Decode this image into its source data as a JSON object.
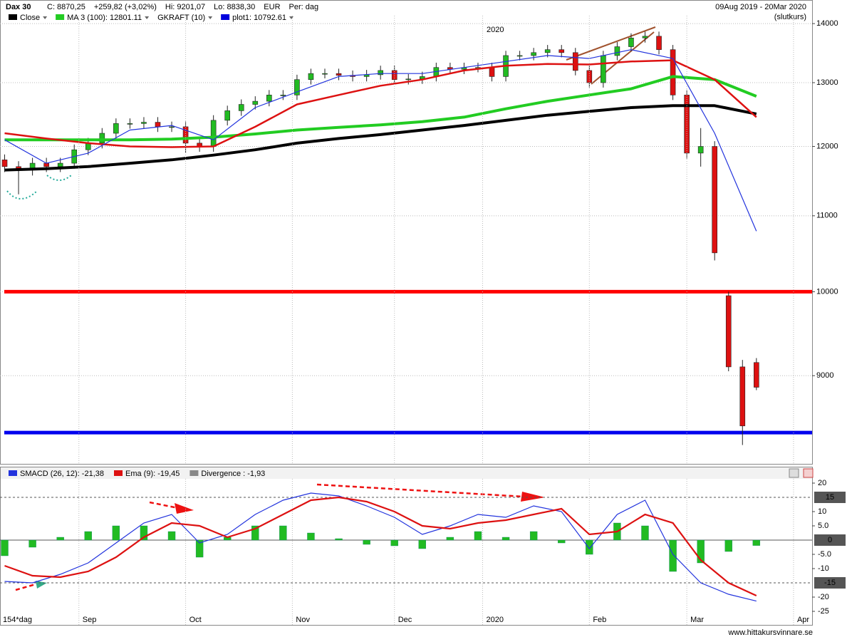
{
  "chart_data": [
    {
      "type": "candlestick",
      "title": "Dax 30",
      "stats": [
        "C: 8870,25",
        "+259,82 (+3,02%)",
        "Hi: 9201,07",
        "Lo: 8838,30",
        "EUR",
        "Per: dag"
      ],
      "date_range": "09Aug 2019 - 20Mar 2020",
      "price_basis": "(slutkurs)",
      "legend": [
        {
          "name": "Close",
          "color": "#000000"
        },
        {
          "name": "MA 3 (100): 12801.11",
          "color": "#22cc22"
        },
        {
          "name": "GKRAFT (10)",
          "color": null
        },
        {
          "name": "plot1: 10792.61",
          "color": "#0000dd"
        }
      ],
      "year_label": "2020",
      "log": true,
      "xlim": [
        -1,
        174
      ],
      "ylim": [
        8050,
        14140
      ],
      "yticks": [
        9000,
        10000,
        11000,
        12000,
        13000,
        14000
      ],
      "candles": {
        "x": [
          0,
          3,
          6,
          9,
          12,
          15,
          18,
          21,
          24,
          27,
          30,
          33,
          36,
          39,
          42,
          45,
          48,
          51,
          54,
          57,
          60,
          63,
          66,
          69,
          72,
          75,
          78,
          81,
          84,
          87,
          90,
          93,
          96,
          99,
          102,
          105,
          108,
          111,
          114,
          117,
          120,
          123,
          126,
          129,
          132,
          135,
          138,
          141,
          144,
          147,
          150,
          153,
          156,
          159,
          162
        ],
        "open": [
          11800,
          11700,
          11650,
          11750,
          11700,
          11750,
          11950,
          12050,
          12200,
          12350,
          12350,
          12370,
          12300,
          12300,
          12050,
          12000,
          12400,
          12550,
          12650,
          12700,
          12800,
          12800,
          13050,
          13150,
          13150,
          13120,
          13100,
          13130,
          13200,
          13050,
          13060,
          13100,
          13250,
          13220,
          13250,
          13250,
          13100,
          13450,
          13450,
          13500,
          13550,
          13500,
          13200,
          13000,
          13450,
          13600,
          13750,
          13780,
          13550,
          12800,
          11900,
          12000,
          9950,
          9100,
          9150
        ],
        "high": [
          11880,
          11780,
          11830,
          11830,
          11830,
          12030,
          12130,
          12280,
          12430,
          12430,
          12450,
          12450,
          12380,
          12380,
          12130,
          12480,
          12630,
          12730,
          12780,
          12880,
          12880,
          13130,
          13230,
          13230,
          13230,
          13200,
          13210,
          13280,
          13280,
          13140,
          13180,
          13330,
          13330,
          13330,
          13330,
          13330,
          13530,
          13530,
          13580,
          13630,
          13630,
          13580,
          13280,
          13530,
          13680,
          13830,
          13860,
          13860,
          13630,
          12880,
          12280,
          12080,
          10000,
          9180,
          9201
        ],
        "low": [
          11620,
          11300,
          11570,
          11620,
          11620,
          11670,
          11870,
          11970,
          12120,
          12270,
          12270,
          12220,
          12220,
          11900,
          11920,
          11920,
          12320,
          12470,
          12570,
          12620,
          12720,
          12720,
          12970,
          13070,
          13040,
          13020,
          13020,
          13050,
          12970,
          12970,
          12980,
          13020,
          13140,
          13140,
          13170,
          13020,
          13020,
          13370,
          13370,
          13420,
          13420,
          13120,
          12920,
          12920,
          13370,
          13520,
          13670,
          13470,
          12720,
          11820,
          11700,
          10400,
          9050,
          8250,
          8838
        ],
        "close": [
          11700,
          11650,
          11750,
          11700,
          11750,
          11950,
          12050,
          12200,
          12350,
          12350,
          12370,
          12300,
          12300,
          12050,
          12000,
          12400,
          12550,
          12650,
          12700,
          12800,
          12800,
          13050,
          13150,
          13150,
          13120,
          13100,
          13130,
          13200,
          13050,
          13060,
          13100,
          13250,
          13220,
          13250,
          13250,
          13100,
          13450,
          13450,
          13500,
          13550,
          13500,
          13200,
          13000,
          13450,
          13600,
          13750,
          13780,
          13550,
          12800,
          11900,
          12000,
          10500,
          9100,
          8450,
          8870
        ],
        "up_color": "#22bb22",
        "down_color": "#dd1111"
      },
      "line_x": [
        0,
        9,
        18,
        27,
        36,
        45,
        54,
        63,
        72,
        81,
        90,
        99,
        108,
        117,
        126,
        135,
        144,
        153,
        162
      ],
      "series": [
        {
          "color": "#000000",
          "width": 4,
          "values": [
            11650,
            11670,
            11700,
            11750,
            11800,
            11870,
            11950,
            12050,
            12120,
            12180,
            12250,
            12320,
            12400,
            12480,
            12540,
            12600,
            12630,
            12630,
            12500
          ]
        },
        {
          "color": "#22cc22",
          "width": 4,
          "values": [
            12100,
            12100,
            12100,
            12100,
            12110,
            12140,
            12190,
            12250,
            12290,
            12330,
            12380,
            12450,
            12580,
            12700,
            12800,
            12900,
            13100,
            13050,
            12780
          ]
        },
        {
          "color": "#dd1111",
          "width": 2.5,
          "values": [
            12200,
            12120,
            12050,
            12000,
            11990,
            12000,
            12300,
            12650,
            12800,
            12950,
            13050,
            13200,
            13280,
            13310,
            13300,
            13350,
            13370,
            13050,
            12450
          ]
        },
        {
          "color": "#2233dd",
          "width": 1.2,
          "values": [
            12100,
            11750,
            11900,
            12250,
            12320,
            12100,
            12600,
            12850,
            13100,
            13150,
            13150,
            13250,
            13350,
            13450,
            13400,
            13550,
            13400,
            12200,
            10790
          ]
        }
      ],
      "hlines": [
        {
          "value": 10000,
          "color": "#ff0000"
        },
        {
          "value": 8380,
          "color": "#0000ee"
        }
      ]
    },
    {
      "type": "macd",
      "period_label": "154*dag",
      "xlim": [
        -1,
        174
      ],
      "ylim": [
        -25.5,
        21.5
      ],
      "yticks": [
        20,
        10,
        {
          "value": 5,
          "label": "5.0"
        },
        {
          "value": -5,
          "label": "-5.0"
        },
        -10,
        -20,
        -25
      ],
      "levels": [
        15,
        0,
        -15
      ],
      "xticks": [
        {
          "value": 16,
          "label": "Sep"
        },
        {
          "value": 39,
          "label": "Oct"
        },
        {
          "value": 62,
          "label": "Nov"
        },
        {
          "value": 84,
          "label": "Dec"
        },
        {
          "value": 103,
          "label": "2020"
        },
        {
          "value": 126,
          "label": "Feb"
        },
        {
          "value": 147,
          "label": "Mar"
        },
        {
          "value": 170,
          "label": "Apr"
        }
      ],
      "x": [
        0,
        6,
        12,
        18,
        24,
        30,
        36,
        42,
        48,
        54,
        60,
        66,
        72,
        78,
        84,
        90,
        96,
        102,
        108,
        114,
        120,
        126,
        132,
        138,
        144,
        150,
        156,
        162
      ],
      "series": [
        {
          "name": "SMACD (26, 12): -21,38",
          "color": "#2233dd",
          "values": [
            -14.5,
            -15,
            -12,
            -8,
            -1,
            6,
            9,
            -1,
            2,
            9,
            14,
            16.5,
            15.5,
            12,
            8,
            2,
            5,
            9,
            8,
            12,
            10,
            -3,
            9,
            14,
            -5,
            -15,
            -19,
            -21.4
          ]
        },
        {
          "name": "Ema (9): -19,45",
          "color": "#dd1111",
          "values": [
            -9,
            -12.5,
            -13,
            -11,
            -6,
            1,
            6,
            5,
            1,
            4,
            9,
            14,
            15,
            13.5,
            10,
            5,
            4,
            6,
            7,
            9,
            11,
            2,
            3,
            9,
            6,
            -7,
            -15,
            -19.5
          ]
        },
        {
          "name": "Divergence : -1,93",
          "color": "#888888",
          "bar_color": "#22bb22",
          "values": [
            -5.5,
            -2.5,
            1,
            3,
            5,
            5,
            3,
            -6,
            1,
            5,
            5,
            2.5,
            0.5,
            -1.5,
            -2,
            -3,
            1,
            3,
            1,
            3,
            -1,
            -5,
            6,
            5,
            -11,
            -8,
            -4,
            -1.9
          ]
        }
      ]
    }
  ],
  "footer": "www.hittakursvinnare.se"
}
